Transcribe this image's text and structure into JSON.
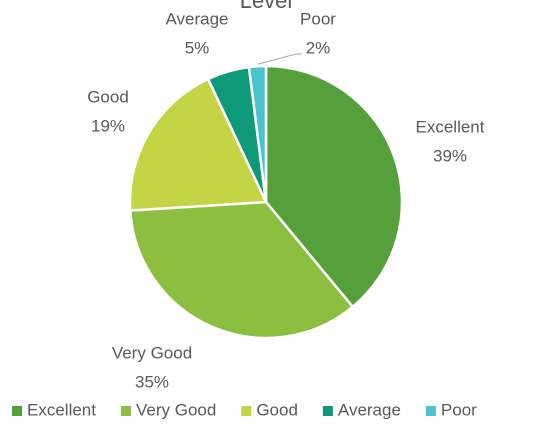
{
  "chart_data": {
    "type": "pie",
    "title": "Level",
    "categories": [
      "Excellent",
      "Very Good",
      "Good",
      "Average",
      "Poor"
    ],
    "values": [
      39,
      35,
      19,
      5,
      2
    ],
    "value_labels": [
      "39%",
      "35%",
      "19%",
      "5%",
      "2%"
    ],
    "colors": [
      "#56a03b",
      "#8cbf3f",
      "#c5d444",
      "#0e9a79",
      "#4ac3cf"
    ],
    "legend": "bottom"
  }
}
